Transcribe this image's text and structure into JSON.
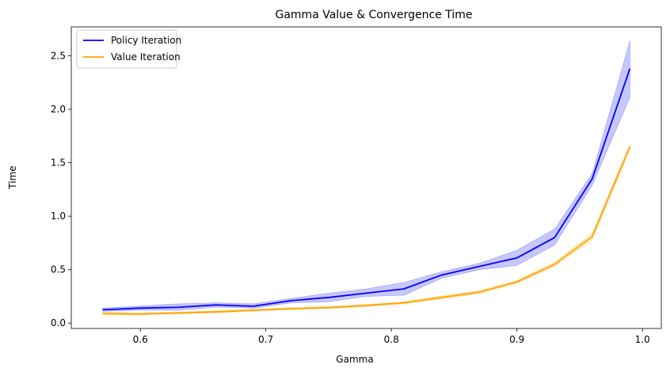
{
  "chart_data": {
    "type": "line",
    "title": "Gamma Value & Convergence Time",
    "xlabel": "Gamma",
    "ylabel": "Time",
    "xlim": [
      0.545,
      1.015
    ],
    "ylim": [
      -0.05,
      2.77
    ],
    "xticks": [
      0.6,
      0.7,
      0.8,
      0.9,
      1.0
    ],
    "xtick_labels": [
      "0.6",
      "0.7",
      "0.8",
      "0.9",
      "1.0"
    ],
    "yticks": [
      0.0,
      0.5,
      1.0,
      1.5,
      2.0,
      2.5
    ],
    "ytick_labels": [
      "0.0",
      "0.5",
      "1.0",
      "1.5",
      "2.0",
      "2.5"
    ],
    "grid": false,
    "legend_position": "top-left",
    "x": [
      0.57,
      0.6,
      0.63,
      0.66,
      0.69,
      0.72,
      0.75,
      0.78,
      0.81,
      0.84,
      0.87,
      0.9,
      0.93,
      0.96,
      0.99
    ],
    "series": [
      {
        "name": "Policy Iteration",
        "color": "#0000ff",
        "values": [
          0.125,
          0.14,
          0.148,
          0.17,
          0.158,
          0.21,
          0.24,
          0.28,
          0.32,
          0.45,
          0.53,
          0.61,
          0.8,
          1.35,
          2.38
        ],
        "lower": [
          0.11,
          0.12,
          0.12,
          0.15,
          0.14,
          0.19,
          0.2,
          0.25,
          0.26,
          0.42,
          0.5,
          0.54,
          0.73,
          1.29,
          2.11
        ],
        "upper": [
          0.14,
          0.16,
          0.18,
          0.19,
          0.18,
          0.23,
          0.28,
          0.32,
          0.38,
          0.48,
          0.56,
          0.68,
          0.88,
          1.4,
          2.64
        ]
      },
      {
        "name": "Value Iteration",
        "color": "#ffa500",
        "values": [
          0.09,
          0.085,
          0.095,
          0.105,
          0.12,
          0.135,
          0.145,
          0.165,
          0.19,
          0.24,
          0.29,
          0.385,
          0.55,
          0.81,
          1.65
        ],
        "lower": [
          0.075,
          0.075,
          0.085,
          0.095,
          0.11,
          0.125,
          0.135,
          0.155,
          0.18,
          0.225,
          0.275,
          0.37,
          0.53,
          0.78,
          1.62
        ],
        "upper": [
          0.105,
          0.095,
          0.105,
          0.115,
          0.13,
          0.145,
          0.155,
          0.175,
          0.2,
          0.255,
          0.305,
          0.4,
          0.57,
          0.84,
          1.68
        ]
      }
    ]
  }
}
